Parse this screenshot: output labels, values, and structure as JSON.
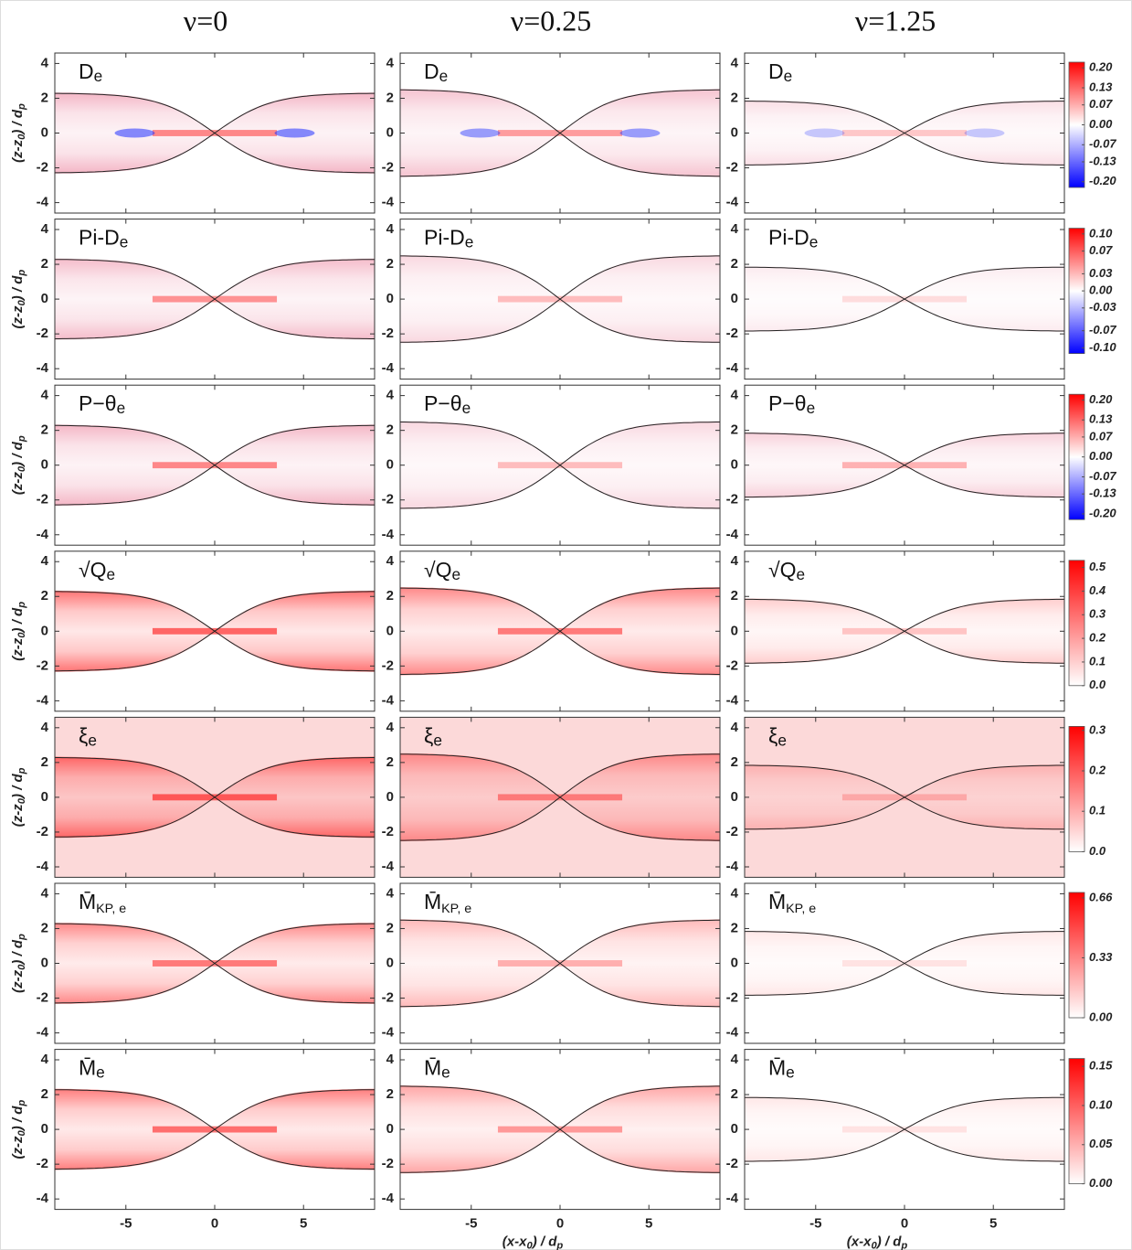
{
  "chart_data": {
    "type": "heatmap",
    "columns": [
      "ν=0",
      "ν=0.25",
      "ν=1.25"
    ],
    "xlabel": [
      "(x-x",
      "0",
      ") / d",
      "p"
    ],
    "ylabel": [
      "(z-z",
      "0",
      ") / d",
      "p"
    ],
    "xlim": [
      -9,
      9
    ],
    "ylim": [
      -4.6,
      4.6
    ],
    "xticks": [
      -5,
      0,
      5
    ],
    "yticks": [
      -4,
      -2,
      0,
      2,
      4
    ],
    "rows": [
      {
        "label": [
          "D",
          "e"
        ],
        "colors": [
          "#0000ff",
          "#ffffff",
          "#ff0000"
        ],
        "clim": [
          -0.22,
          0.22
        ],
        "ticks": [
          {
            "value": 0.2,
            "label": "0.20"
          },
          {
            "value": 0.13,
            "label": "0.13"
          },
          {
            "value": 0.07,
            "label": "0.07"
          },
          {
            "value": 0,
            "label": "0.00"
          },
          {
            "value": -0.07,
            "label": "-0.07"
          },
          {
            "value": -0.13,
            "label": "-0.13"
          },
          {
            "value": -0.2,
            "label": "-0.20"
          }
        ]
      },
      {
        "label": [
          "Pi-D",
          "e"
        ],
        "colors": [
          "#0000ff",
          "#ffffff",
          "#ff0000"
        ],
        "clim": [
          -0.11,
          0.11
        ],
        "ticks": [
          {
            "value": 0.1,
            "label": "0.10"
          },
          {
            "value": 0.07,
            "label": "0.07"
          },
          {
            "value": 0.03,
            "label": "0.03"
          },
          {
            "value": 0,
            "label": "0.00"
          },
          {
            "value": -0.03,
            "label": "-0.03"
          },
          {
            "value": -0.07,
            "label": "-0.07"
          },
          {
            "value": -0.1,
            "label": "-0.10"
          }
        ]
      },
      {
        "label": [
          "P−θ",
          "e"
        ],
        "colors": [
          "#0000ff",
          "#ffffff",
          "#ff0000"
        ],
        "clim": [
          -0.22,
          0.22
        ],
        "ticks": [
          {
            "value": 0.2,
            "label": "0.20"
          },
          {
            "value": 0.13,
            "label": "0.13"
          },
          {
            "value": 0.07,
            "label": "0.07"
          },
          {
            "value": 0,
            "label": "0.00"
          },
          {
            "value": -0.07,
            "label": "-0.07"
          },
          {
            "value": -0.13,
            "label": "-0.13"
          },
          {
            "value": -0.2,
            "label": "-0.20"
          }
        ]
      },
      {
        "label": [
          "√Q",
          "e"
        ],
        "colors": [
          "#ffffff",
          "#ff0000"
        ],
        "clim": [
          0,
          0.53
        ],
        "ticks": [
          0.5,
          0.4,
          0.3,
          0.2,
          0.1,
          {
            "value": 0,
            "label": "0.0"
          }
        ]
      },
      {
        "label": [
          "ξ",
          "e"
        ],
        "colors": [
          "#ffffff",
          "#ff0000"
        ],
        "clim": [
          0,
          0.31
        ],
        "ticks": [
          0.3,
          0.2,
          0.1,
          {
            "value": 0,
            "label": "0.0"
          }
        ]
      },
      {
        "label": [
          "M̄",
          "KP, e"
        ],
        "colors": [
          "#ffffff",
          "#ff0000"
        ],
        "clim": [
          0,
          0.69
        ],
        "ticks": [
          0.66,
          0.33,
          {
            "value": 0,
            "label": "0.00"
          }
        ]
      },
      {
        "label": [
          "M̄",
          "e"
        ],
        "colors": [
          "#ffffff",
          "#ff0000"
        ],
        "clim": [
          0,
          0.16
        ],
        "ticks": [
          0.15,
          {
            "value": 0.1,
            "label": "0.10"
          },
          0.05,
          {
            "value": 0,
            "label": "0.00"
          }
        ]
      }
    ]
  }
}
